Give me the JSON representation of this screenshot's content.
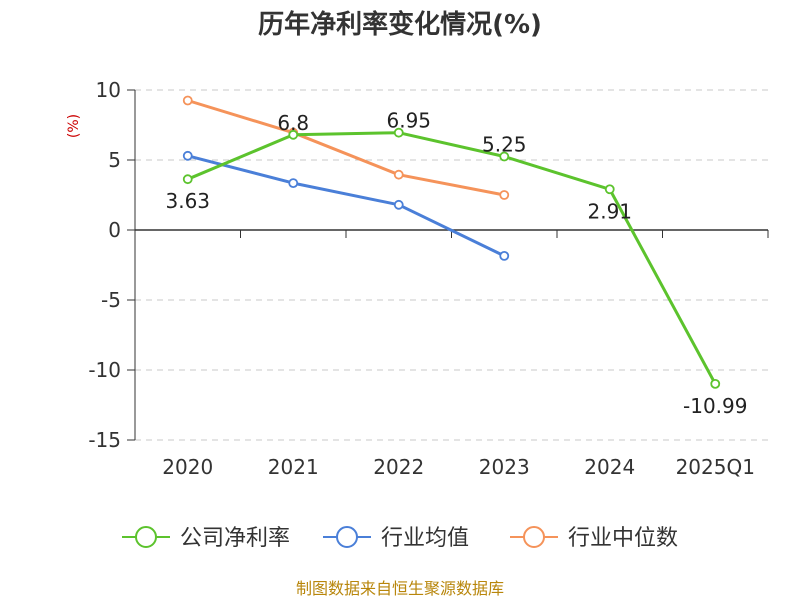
{
  "chart_data": {
    "type": "line",
    "title": "历年净利率变化情况(%)",
    "ylabel": "(%)",
    "xlabel": "",
    "categories": [
      "2020",
      "2021",
      "2022",
      "2023",
      "2024",
      "2025Q1"
    ],
    "ylim": [
      -15,
      10
    ],
    "yticks": [
      10,
      5,
      0,
      -5,
      -10,
      -15
    ],
    "grid": true,
    "legend_position": "bottom",
    "series": [
      {
        "name": "公司净利率",
        "color": "#5cc32d",
        "values": [
          3.63,
          6.8,
          6.95,
          5.25,
          2.91,
          -10.99
        ],
        "labels": [
          "3.63",
          "6.8",
          "6.95",
          "5.25",
          "2.91",
          "-10.99"
        ]
      },
      {
        "name": "行业均值",
        "color": "#4a7fd8",
        "values": [
          5.3,
          3.35,
          1.8,
          -1.85,
          null,
          null
        ]
      },
      {
        "name": "行业中位数",
        "color": "#f5935a",
        "values": [
          9.25,
          6.95,
          3.95,
          2.5,
          null,
          null
        ]
      }
    ]
  },
  "footer": {
    "source": "制图数据来自恒生聚源数据库"
  }
}
